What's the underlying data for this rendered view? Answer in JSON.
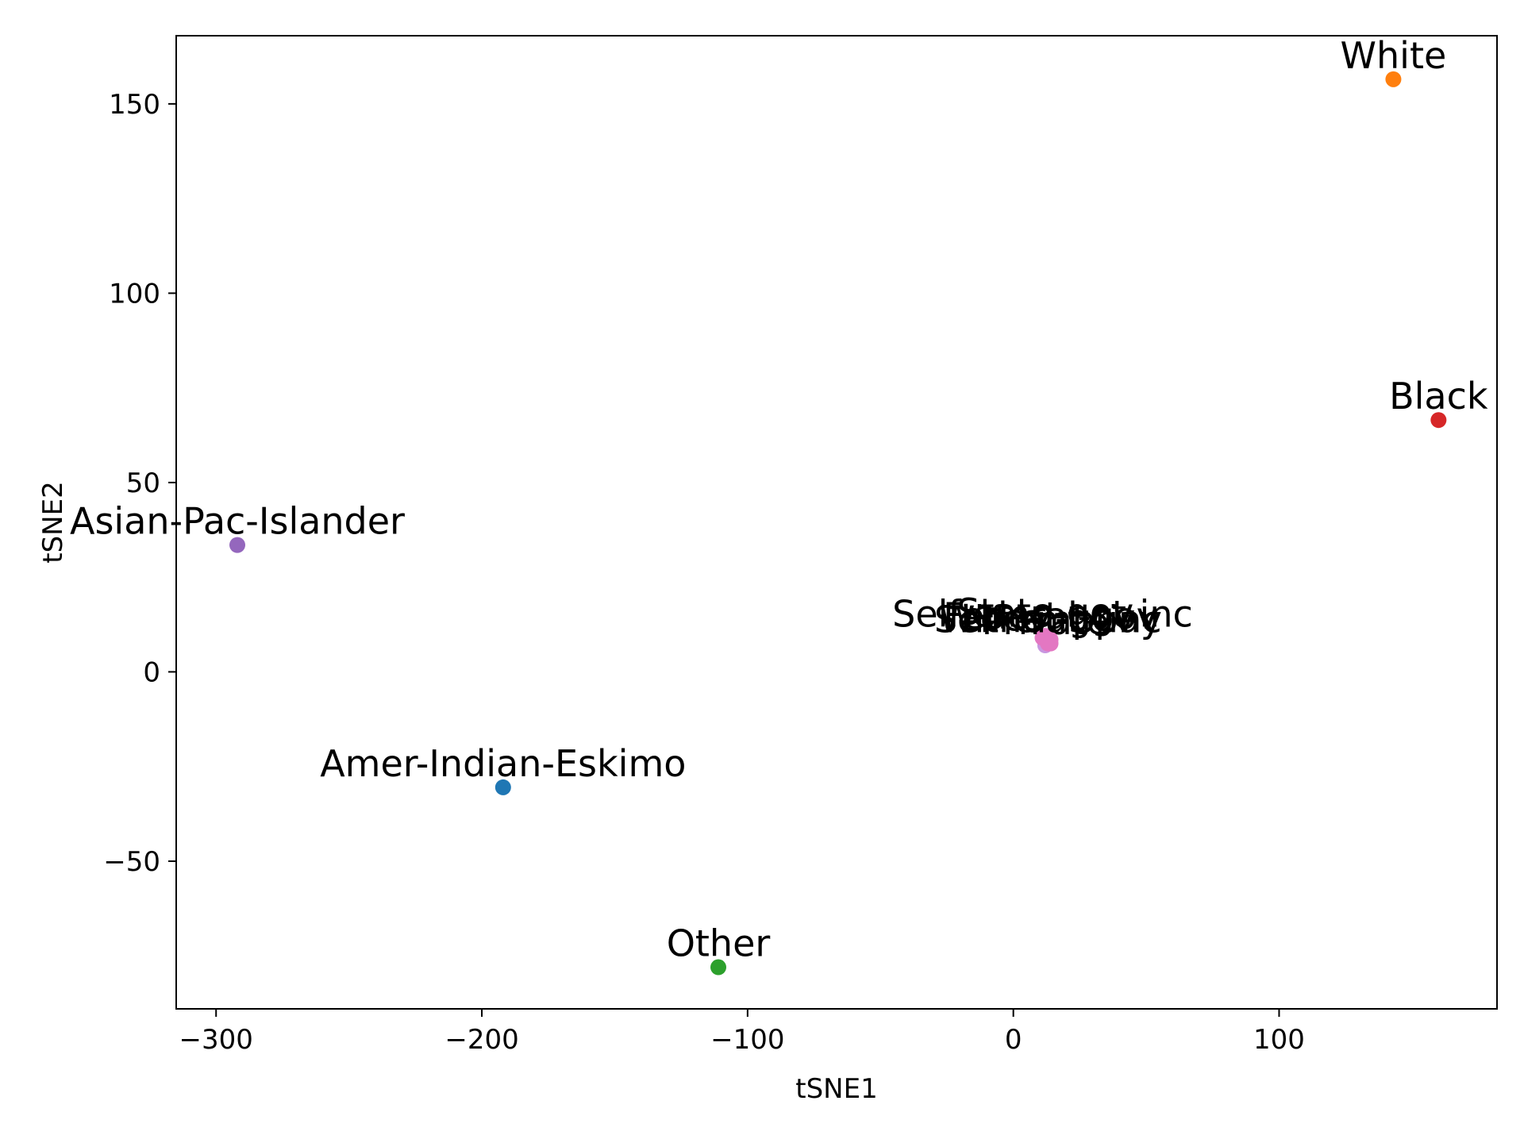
{
  "chart_data": {
    "type": "scatter",
    "title": "",
    "xlabel": "tSNE1",
    "ylabel": "tSNE2",
    "xlim": [
      -315,
      182
    ],
    "ylim": [
      -89,
      168
    ],
    "xticks": [
      -300,
      -200,
      -100,
      0,
      100
    ],
    "yticks": [
      -50,
      0,
      50,
      100,
      150
    ],
    "xtick_labels": [
      "−300",
      "−200",
      "−100",
      "0",
      "100"
    ],
    "ytick_labels": [
      "−50",
      "0",
      "50",
      "100",
      "150"
    ],
    "grid": false,
    "points": [
      {
        "label": "White",
        "x": 143,
        "y": 156.5,
        "color": "#ff7f0e"
      },
      {
        "label": "Black",
        "x": 160,
        "y": 66.5,
        "color": "#d62728"
      },
      {
        "label": "Asian-Pac-Islander",
        "x": -292,
        "y": 33.5,
        "color": "#9467bd"
      },
      {
        "label": "Amer-Indian-Eskimo",
        "x": -192,
        "y": -30.5,
        "color": "#1f77b4"
      },
      {
        "label": "Other",
        "x": -111,
        "y": -78,
        "color": "#2ca02c"
      },
      {
        "label": "Private",
        "x": 12,
        "y": 7,
        "color": "#c896e0"
      },
      {
        "label": "Self-emp-not-inc",
        "x": 11,
        "y": 9,
        "color": "#e377c2"
      },
      {
        "label": "Local-gov",
        "x": 13,
        "y": 8,
        "color": "#e377c2"
      },
      {
        "label": "State-gov",
        "x": 12,
        "y": 9.5,
        "color": "#e377c2"
      },
      {
        "label": "Federal-gov",
        "x": 14,
        "y": 8.5,
        "color": "#e377c2"
      },
      {
        "label": "Self-emp-inc",
        "x": 13,
        "y": 7.5,
        "color": "#e377c2"
      },
      {
        "label": "Without-pay",
        "x": 14,
        "y": 7.5,
        "color": "#e377c2"
      }
    ]
  }
}
